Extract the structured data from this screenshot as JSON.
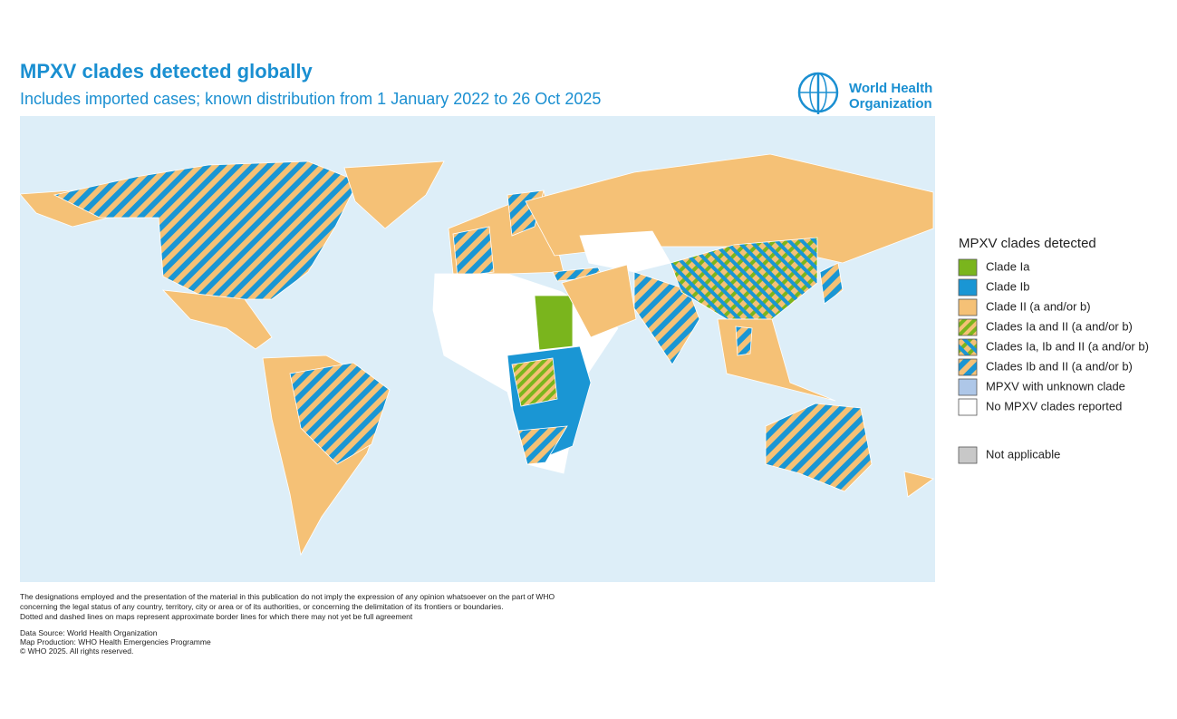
{
  "header": {
    "title": "MPXV clades detected globally",
    "subtitle": "Includes imported cases; known distribution from 1 January 2022 to 26 Oct 2025",
    "logo": [
      "World Health",
      "Organization"
    ]
  },
  "legend": {
    "title": "MPXV clades detected",
    "items": [
      "Clade Ia",
      "Clade Ib",
      "Clade II (a and/or b)",
      "Clades Ia and II (a and/or b)",
      "Clades Ia, Ib and II (a and/or b)",
      "Clades Ib and II (a and/or b)",
      "MPXV with unknown clade",
      "No MPXV clades reported"
    ],
    "not_applicable": "Not applicable"
  },
  "footer": {
    "disclaimer": [
      "The designations employed and the presentation of the material in this publication do not imply the expression of any opinion whatsoever on the part of WHO",
      "concerning the legal status of any country, territory, city or area or of its authorities, or concerning the delimitation of its frontiers or boundaries.",
      "Dotted and dashed lines on maps represent approximate border lines for which there may not yet be full agreement"
    ],
    "credits": [
      "Data Source: World Health Organization",
      "Map Production: WHO Health Emergencies Programme",
      "© WHO 2025. All rights reserved."
    ]
  }
}
